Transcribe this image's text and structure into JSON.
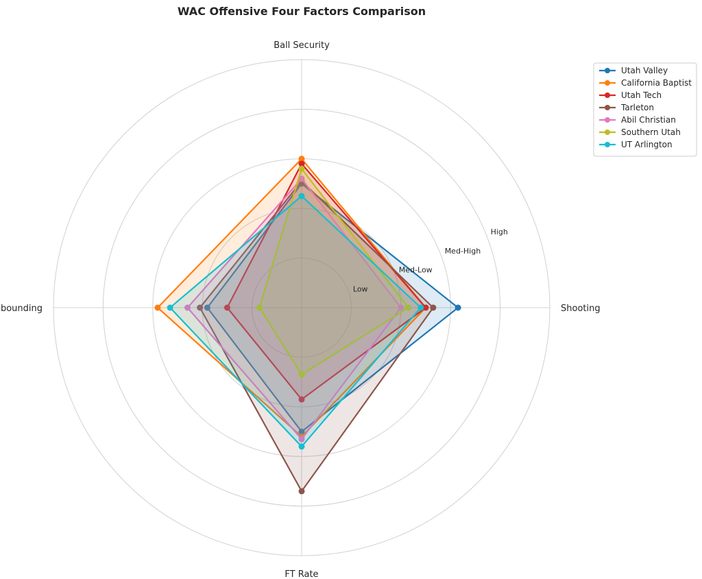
{
  "chart_data": {
    "type": "radar",
    "title": "WAC Offensive Four Factors Comparison",
    "axes": [
      "Shooting",
      "Ball Security",
      "Off Rebounding",
      "FT Rate"
    ],
    "ring_labels": [
      "Low",
      "Med-Low",
      "Med-High",
      "High"
    ],
    "rlim": [
      0,
      5
    ],
    "grid": true,
    "legend_position": "top-right",
    "series": [
      {
        "name": "Utah Valley",
        "color": "#1f77b4",
        "values": [
          3.15,
          2.5,
          1.9,
          2.5
        ]
      },
      {
        "name": "California Baptist",
        "color": "#ff7f0e",
        "values": [
          2.5,
          3.0,
          2.9,
          2.6
        ]
      },
      {
        "name": "Utah Tech",
        "color": "#d62728",
        "values": [
          2.5,
          2.9,
          1.5,
          1.85
        ]
      },
      {
        "name": "Tarleton",
        "color": "#8c564b",
        "values": [
          2.65,
          2.55,
          2.05,
          3.7
        ]
      },
      {
        "name": "Abil Christian",
        "color": "#e377c2",
        "values": [
          2.0,
          2.6,
          2.3,
          2.65
        ]
      },
      {
        "name": "Southern Utah",
        "color": "#bcbd22",
        "values": [
          2.15,
          2.8,
          0.85,
          1.35
        ]
      },
      {
        "name": "UT Arlington",
        "color": "#17becf",
        "values": [
          2.4,
          2.25,
          2.65,
          2.8
        ]
      }
    ]
  }
}
